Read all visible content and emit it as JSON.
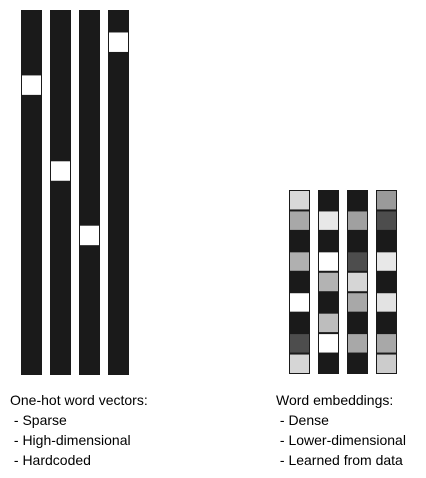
{
  "onehot": {
    "title": "One-hot word vectors:",
    "points": [
      " - Sparse",
      " - High-dimensional",
      " - Hardcoded"
    ],
    "vector_length": 17,
    "hot_index": [
      3,
      7,
      10,
      1
    ],
    "cell_color": "#1a1a1a",
    "hot_color": "#ffffff"
  },
  "embedding": {
    "title": "Word embeddings:",
    "points": [
      " - Dense",
      " - Lower-dimensional",
      " - Learned from data"
    ],
    "vectors": [
      [
        "#d9d9d9",
        "#a8a8a8",
        "#1a1a1a",
        "#b0b0b0",
        "#1a1a1a",
        "#ffffff",
        "#1a1a1a",
        "#4d4d4d",
        "#d6d6d6"
      ],
      [
        "#1a1a1a",
        "#e8e8e8",
        "#1a1a1a",
        "#ffffff",
        "#b3b3b3",
        "#1a1a1a",
        "#bdbdbd",
        "#ffffff",
        "#1a1a1a"
      ],
      [
        "#1a1a1a",
        "#a0a0a0",
        "#1a1a1a",
        "#4d4d4d",
        "#d6d6d6",
        "#a8a8a8",
        "#1a1a1a",
        "#a8a8a8",
        "#1a1a1a"
      ],
      [
        "#9a9a9a",
        "#4d4d4d",
        "#1a1a1a",
        "#e8e8e8",
        "#1a1a1a",
        "#e3e3e3",
        "#1a1a1a",
        "#a8a8a8",
        "#cccccc"
      ]
    ]
  }
}
